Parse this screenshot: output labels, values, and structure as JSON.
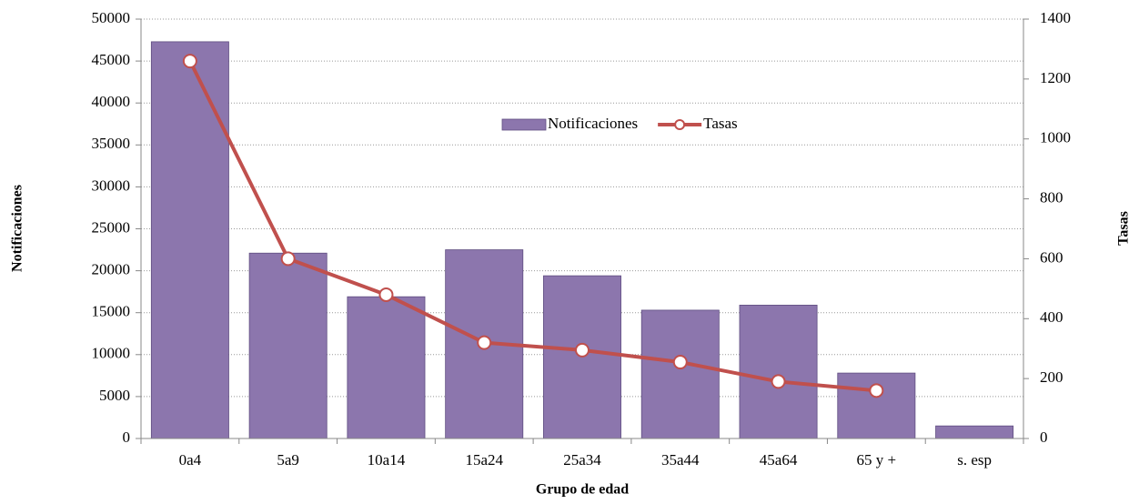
{
  "chart_data": {
    "type": "bar-line",
    "x_label": "Grupo de edad",
    "y_label": "Notificaciones",
    "y2_label": "Tasas",
    "categories": [
      "0a4",
      "5a9",
      "10a14",
      "15a24",
      "25a34",
      "35a44",
      "45a64",
      "65 y +",
      "s. esp"
    ],
    "series": [
      {
        "name": "Notificaciones",
        "type": "bar",
        "color": "#8c76ad",
        "values": [
          47300,
          22100,
          16900,
          22500,
          19400,
          15300,
          15900,
          7800,
          1500
        ]
      },
      {
        "name": "Tasas",
        "type": "line",
        "axis": "y2",
        "color": "#c0504d",
        "values": [
          1260,
          600,
          480,
          320,
          295,
          255,
          190,
          160,
          null
        ]
      }
    ],
    "ylim": [
      0,
      50000
    ],
    "yticks": [
      0,
      5000,
      10000,
      15000,
      20000,
      25000,
      30000,
      35000,
      40000,
      45000,
      50000
    ],
    "y2lim": [
      0,
      1400
    ],
    "y2ticks": [
      0,
      200,
      400,
      600,
      800,
      1000,
      1200,
      1400
    ],
    "grid": true,
    "legend": "upper center"
  }
}
